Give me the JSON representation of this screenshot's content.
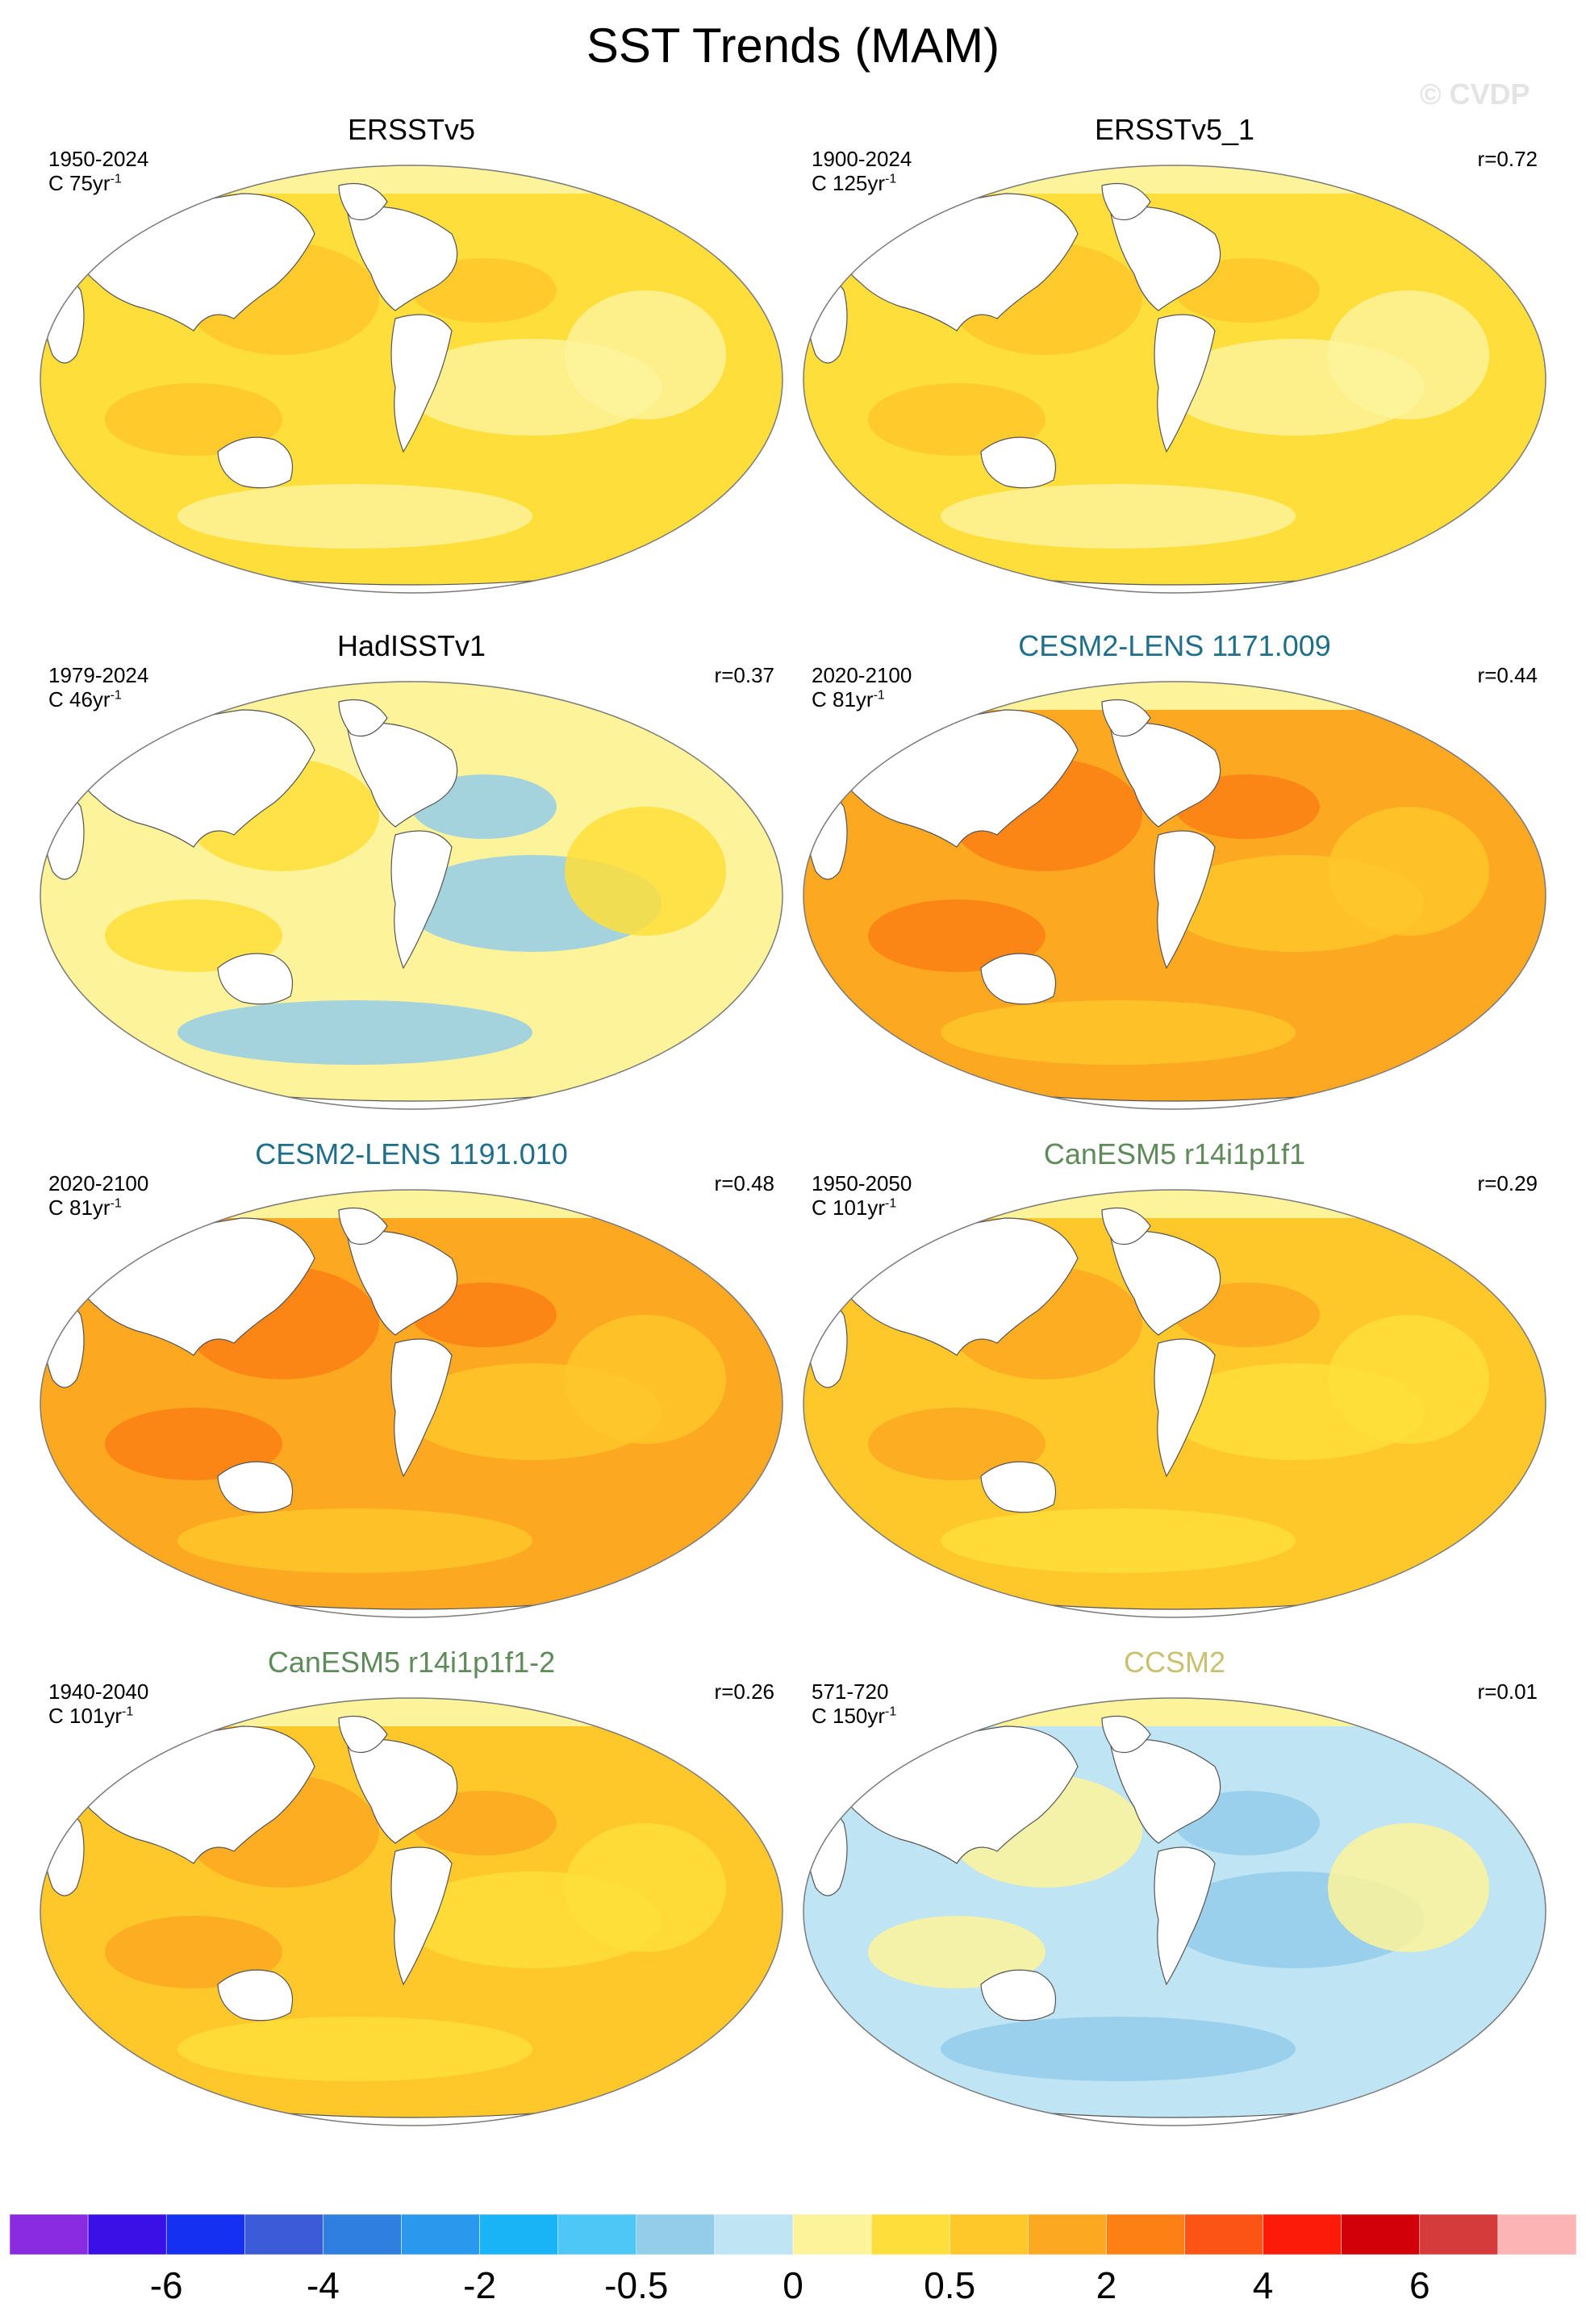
{
  "figure": {
    "title": "SST Trends (MAM)",
    "copyright": "© CVDP"
  },
  "panels": [
    {
      "title": "ERSSTv5",
      "title_color": "#000000",
      "period": "1950-2024",
      "units_prefix": "C 75yr",
      "units_sup": "-1",
      "correlation": "",
      "palette": "warm",
      "dominant_level": 11
    },
    {
      "title": "ERSSTv5_1",
      "title_color": "#000000",
      "period": "1900-2024",
      "units_prefix": "C 125yr",
      "units_sup": "-1",
      "correlation": "r=0.72",
      "palette": "warm",
      "dominant_level": 11
    },
    {
      "title": "HadISSTv1",
      "title_color": "#000000",
      "period": "1979-2024",
      "units_prefix": "C 46yr",
      "units_sup": "-1",
      "correlation": "r=0.37",
      "palette": "mixed",
      "dominant_level": 10
    },
    {
      "title": "CESM2-LENS 1171.009",
      "title_color": "#1f6f8b",
      "period": "2020-2100",
      "units_prefix": "C 81yr",
      "units_sup": "-1",
      "correlation": "r=0.44",
      "palette": "hot",
      "dominant_level": 13
    },
    {
      "title": "CESM2-LENS 1191.010",
      "title_color": "#1f6f8b",
      "period": "2020-2100",
      "units_prefix": "C 81yr",
      "units_sup": "-1",
      "correlation": "r=0.48",
      "palette": "hot",
      "dominant_level": 13
    },
    {
      "title": "CanESM5 r14i1p1f1",
      "title_color": "#5f8a5a",
      "period": "1950-2050",
      "units_prefix": "C 101yr",
      "units_sup": "-1",
      "correlation": "r=0.29",
      "palette": "hot",
      "dominant_level": 12
    },
    {
      "title": "CanESM5 r14i1p1f1-2",
      "title_color": "#5f8a5a",
      "period": "1940-2040",
      "units_prefix": "C 101yr",
      "units_sup": "-1",
      "correlation": "r=0.26",
      "palette": "hot",
      "dominant_level": 12
    },
    {
      "title": "CCSM2",
      "title_color": "#c9c070",
      "period": "571-720",
      "units_prefix": "C 150yr",
      "units_sup": "-1",
      "correlation": "r=0.01",
      "palette": "cool",
      "dominant_level": 9
    }
  ],
  "colorbar": {
    "colors": [
      "#8a2be2",
      "#3a10e6",
      "#1530f0",
      "#3b5bd8",
      "#2f7fe0",
      "#2a98ec",
      "#18b4f6",
      "#4ec6f6",
      "#94cdea",
      "#bfe4f4",
      "#fdf39a",
      "#fede3a",
      "#fec72a",
      "#fca820",
      "#fc8014",
      "#fc5414",
      "#fc1a08",
      "#d20008",
      "#d63b3b",
      "#fcb4b4"
    ],
    "labels": [
      "-6",
      "-4",
      "-2",
      "-0.5",
      "0",
      "0.5",
      "2",
      "4",
      "6"
    ]
  }
}
